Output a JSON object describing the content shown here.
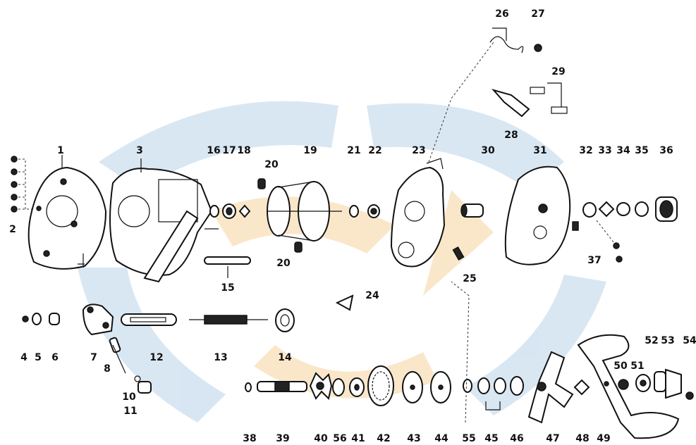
{
  "watermark": {
    "colors": {
      "blue": "#b9d3ea",
      "orange": "#f6d49e"
    }
  },
  "labels": {
    "p1": "1",
    "p2": "2",
    "p3": "3",
    "p4": "4",
    "p5": "5",
    "p6": "6",
    "p7": "7",
    "p8": "8",
    "p10": "10",
    "p11": "11",
    "p12": "12",
    "p13": "13",
    "p14": "14",
    "p15": "15",
    "p16": "16",
    "p17": "17",
    "p18": "18",
    "p19": "19",
    "p20a": "20",
    "p20b": "20",
    "p21": "21",
    "p22": "22",
    "p23": "23",
    "p24": "24",
    "p25": "25",
    "p26": "26",
    "p27": "27",
    "p28": "28",
    "p29": "29",
    "p30": "30",
    "p31": "31",
    "p32": "32",
    "p33": "33",
    "p34": "34",
    "p35": "35",
    "p36": "36",
    "p37": "37",
    "p38": "38",
    "p39": "39",
    "p40": "40",
    "p41": "41",
    "p42": "42",
    "p43": "43",
    "p44": "44",
    "p45": "45",
    "p46": "46",
    "p47": "47",
    "p48": "48",
    "p49": "49",
    "p50": "50",
    "p51": "51",
    "p52": "52",
    "p53": "53",
    "p54": "54",
    "p55": "55",
    "p56": "56"
  }
}
